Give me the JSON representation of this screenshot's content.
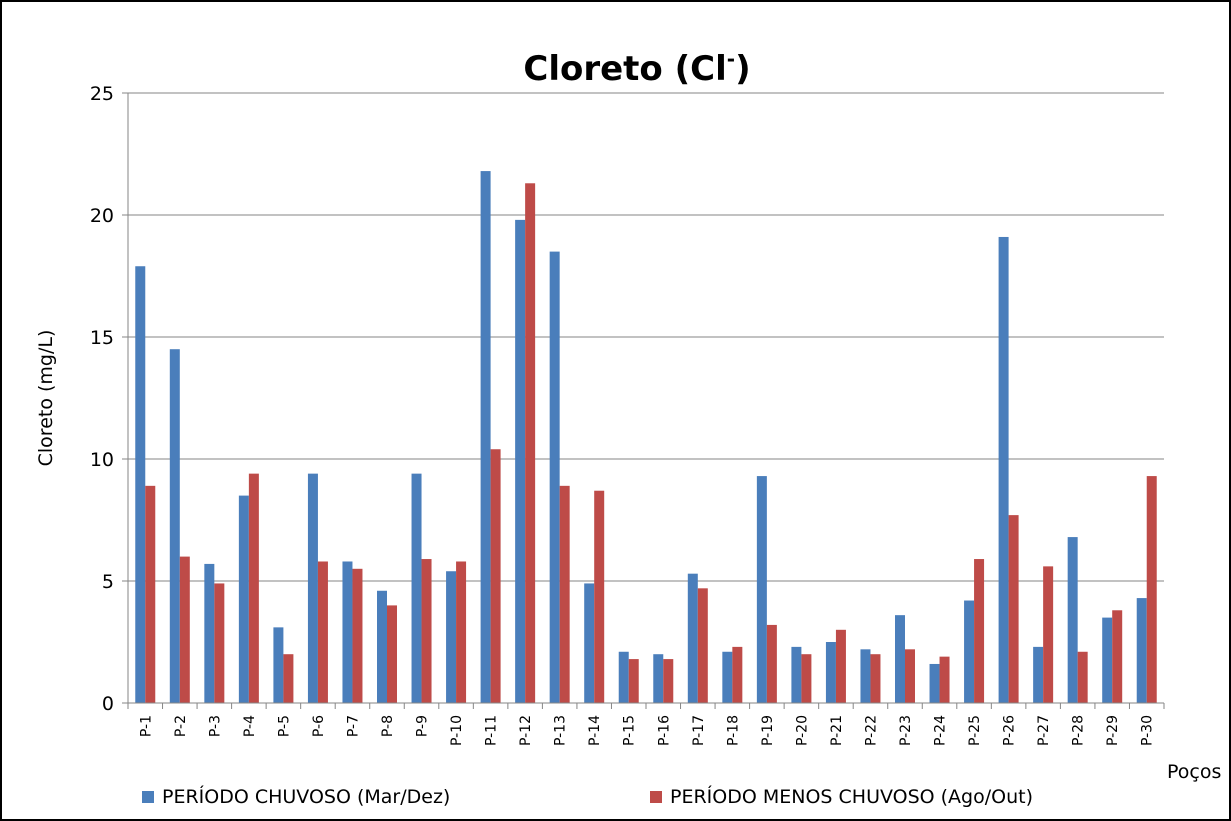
{
  "chart_data": {
    "type": "bar",
    "title": "Cloreto (Cl",
    "title_superscript": "-",
    "title_close": ")",
    "ylabel": "Cloreto (mg/L)",
    "xlabel": "Poços",
    "ylim": [
      0,
      25
    ],
    "yticks": [
      0,
      5,
      10,
      15,
      20,
      25
    ],
    "grid": true,
    "legend_position": "bottom",
    "categories": [
      "P-1",
      "P-2",
      "P-3",
      "P-4",
      "P-5",
      "P-6",
      "P-7",
      "P-8",
      "P-9",
      "P-10",
      "P-11",
      "P-12",
      "P-13",
      "P-14",
      "P-15",
      "P-16",
      "P-17",
      "P-18",
      "P-19",
      "P-20",
      "P-21",
      "P-22",
      "P-23",
      "P-24",
      "P-25",
      "P-26",
      "P-27",
      "P-28",
      "P-29",
      "P-30"
    ],
    "series": [
      {
        "name": "PERÍODO CHUVOSO (Mar/Dez)",
        "color": "#4a7ebb",
        "values": [
          17.9,
          14.5,
          5.7,
          8.5,
          3.1,
          9.4,
          5.8,
          4.6,
          9.4,
          5.4,
          21.8,
          19.8,
          18.5,
          4.9,
          2.1,
          2.0,
          5.3,
          2.1,
          9.3,
          2.3,
          2.5,
          2.2,
          3.6,
          1.6,
          4.2,
          19.1,
          2.3,
          6.8,
          3.5,
          4.3
        ]
      },
      {
        "name": "PERÍODO MENOS CHUVOSO (Ago/Out)",
        "color": "#be4b48",
        "values": [
          8.9,
          6.0,
          4.9,
          9.4,
          2.0,
          5.8,
          5.5,
          4.0,
          5.9,
          5.8,
          10.4,
          21.3,
          8.9,
          8.7,
          1.8,
          1.8,
          4.7,
          2.3,
          3.2,
          2.0,
          3.0,
          2.0,
          2.2,
          1.9,
          5.9,
          7.7,
          5.6,
          2.1,
          3.8,
          9.3
        ]
      }
    ]
  }
}
